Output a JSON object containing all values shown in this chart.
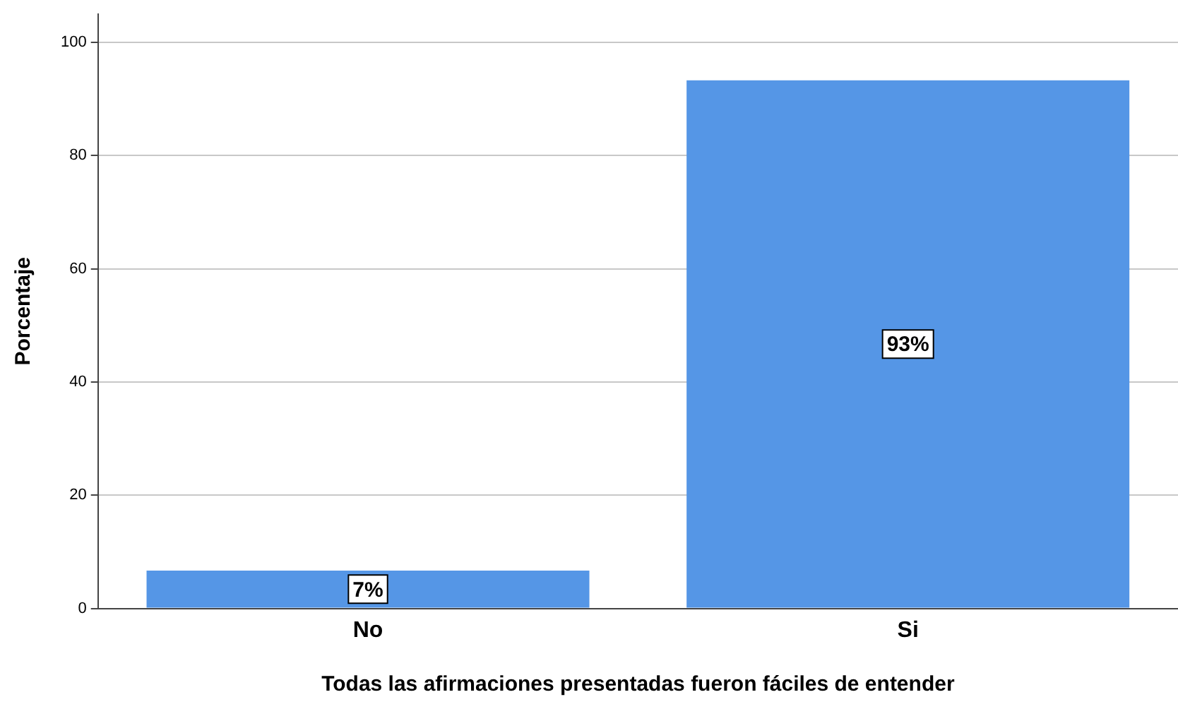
{
  "chart_data": {
    "type": "bar",
    "xlabel": "Todas las afirmaciones presentadas fueron fáciles de entender",
    "ylabel": "Porcentaje",
    "categories": [
      "No",
      "Si"
    ],
    "values": [
      6.7,
      93.3
    ],
    "value_labels": [
      "7%",
      "93%"
    ],
    "color": "#5596e6",
    "ylim": [
      0,
      105
    ],
    "yticks": [
      0,
      20,
      40,
      60,
      80,
      100
    ],
    "grid": "y",
    "legend": false
  }
}
